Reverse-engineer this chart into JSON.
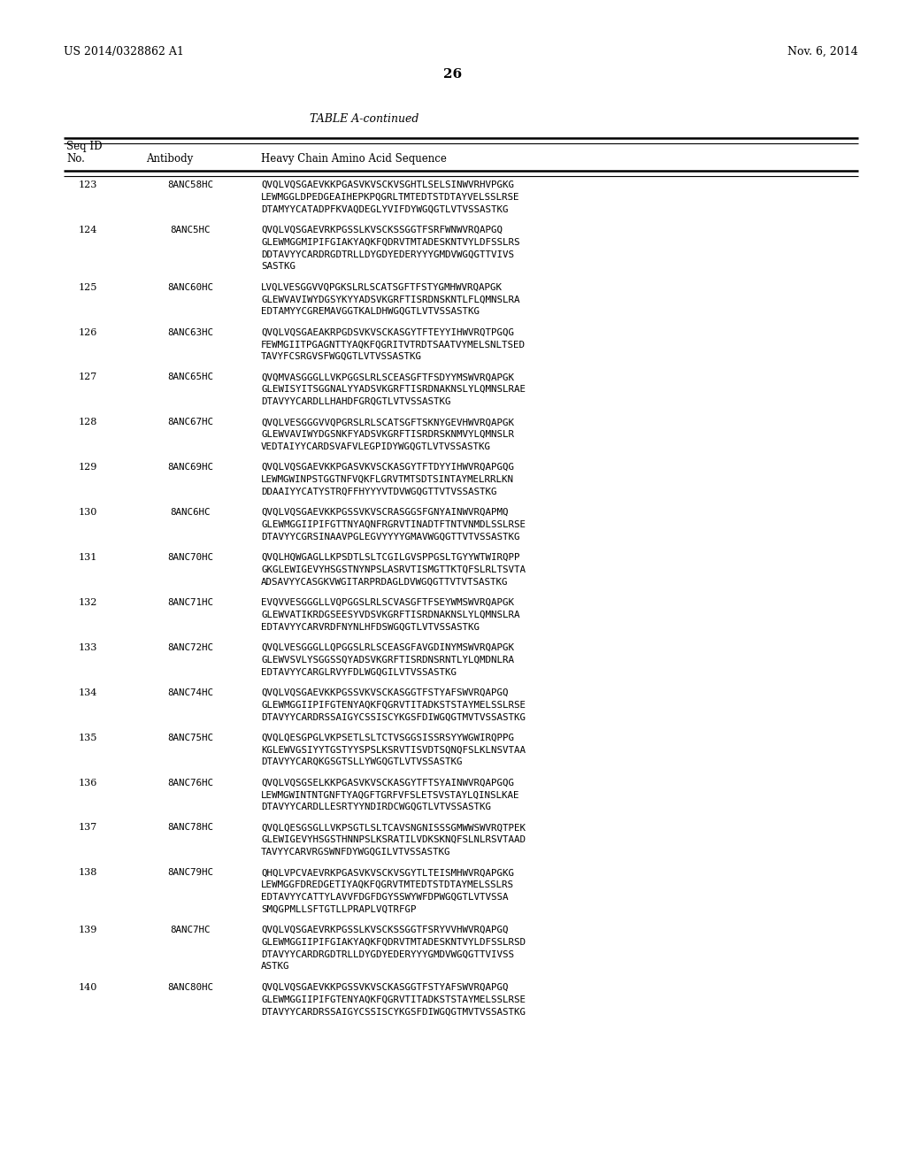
{
  "patent_left": "US 2014/0328862 A1",
  "patent_right": "Nov. 6, 2014",
  "page_number": "26",
  "table_title": "TABLE A-continued",
  "background_color": "#ffffff",
  "text_color": "#000000",
  "rows": [
    {
      "seq_id": "123",
      "antibody": "8ANC58HC",
      "sequence": "QVQLVQSGAEVKKPGASVKVSCKVSGHTLSELSINWVRHVPGKG\nLEWMGGLDPEDGEAIHEPKPQGRLTMTEDTSTDTAYVELSSLRSE\nDTAMYYCATADPFKVAQDEGLYVIFDYWGQGTLVTVSSASTKG"
    },
    {
      "seq_id": "124",
      "antibody": "8ANC5HC",
      "sequence": "QVQLVQSGAEVRKPGSSLKVSCKSSGGTFSRFWNWVRQAPGQ\nGLEWMGGMIPIFGIAKYAQKFQDRVTMTADESKNTVYLDFSSLRS\nDDTAVYYCARDRGDTRLLDYGDYEDERYYYGMDVWGQGTTVIVS\nSASTKG"
    },
    {
      "seq_id": "125",
      "antibody": "8ANC60HC",
      "sequence": "LVQLVESGGVVQPGKSLRLSCATSGFTFSTYGMHWVRQAPGK\nGLEWVAVIWYDGSYKYYADSVKGRFTISRDNSKNTLFLQMNSLRA\nEDTAMYYCGREMAVGGTKALDHWGQGTLVTVSSASTKG"
    },
    {
      "seq_id": "126",
      "antibody": "8ANC63HC",
      "sequence": "QVQLVQSGAEAKRPGDSVKVSCKASGYTFTEYYIHWVRQTPGQG\nFEWMGIITPGAGNTTYAQKFQGRITVTRDTSAATVYMELSNLTSED\nTAVYFCSRGVSFWGQGTLVTVSSASTKG"
    },
    {
      "seq_id": "127",
      "antibody": "8ANC65HC",
      "sequence": "QVQMVASGGGLLVKPGGSLRLSCEASGFTFSDYYMSWVRQAPGK\nGLEWISYITSGGNALYYADSVKGRFTISRDNAKNSLYLQMNSLRAE\nDTAVYYCARDLLHAHDFGRQGTLVTVSSASTKG"
    },
    {
      "seq_id": "128",
      "antibody": "8ANC67HC",
      "sequence": "QVQLVESGGGVVQPGRSLRLSCATSGFTSKNYGEVHWVRQAPGK\nGLEWVAVIWYDGSNKFYADSVKGRFTISRDRSKNMVYLQMNSLR\nVEDTAIYYCARDSVAFVLEGPIDYWGQGTLVTVSSASTKG"
    },
    {
      "seq_id": "129",
      "antibody": "8ANC69HC",
      "sequence": "QVQLVQSGAEVKKPGASVKVSCKASGYTFTDYYIHWVRQAPGQG\nLEWMGWINPSTGGTNFVQKFLGRVTMTSDTSINTAYMELRRLKN\nDDAAIYYCATYSTRQFFHYYYVTDVWGQGTTVTVSSASTKG"
    },
    {
      "seq_id": "130",
      "antibody": "8ANC6HC",
      "sequence": "QVQLVQSGAEVKKPGSSVKVSCRASGGSFGNYAINWVRQAPMQ\nGLEWMGGIIPIFGTTNYAQNFRGRVTINADTFTNTVNMDLSSLRSE\nDTAVYYCGRSINAAVPGLEGVYYYYGMAVWGQGTTVTVSSASTKG"
    },
    {
      "seq_id": "131",
      "antibody": "8ANC70HC",
      "sequence": "QVQLHQWGAGLLKPSDTLSLTCGILGVSPPGSLTGYYWTWIRQPP\nGKGLEWIGEVYHSGSTNYNPSLASRVTISMGTTKTQFSLRLTSVTA\nADSAVYYCASGKVWGITARPRDAGLDVWGQGTTVTVTSASTKG"
    },
    {
      "seq_id": "132",
      "antibody": "8ANC71HC",
      "sequence": "EVQVVESGGGLLVQPGGSLRLSCVASGFTFSEYWMSWVRQAPGK\nGLEWVATIKRDGSEESYVDSVKGRFTISRDNAKNSLYLQMNSLRA\nEDTAVYYCARVRDFNYNLHFDSWGQGTLVTVSSASTKG"
    },
    {
      "seq_id": "133",
      "antibody": "8ANC72HC",
      "sequence": "QVQLVESGGGLLQPGGSLRLSCEASGFAVGDINYMSWVRQAPGK\nGLEWVSVLYSGGSSQYADSVKGRFTISRDNSRNTLYLQMDNLRA\nEDTAVYYCARGLRVYFDLWGQGILVTVSSASTKG"
    },
    {
      "seq_id": "134",
      "antibody": "8ANC74HC",
      "sequence": "QVQLVQSGAEVKKPGSSVKVSCKASGGTFSTYAFSWVRQAPGQ\nGLEWMGGIIPIFGTENYAQKFQGRVTITADKSTSTAYMELSSLRSE\nDTAVYYCARDRSSAIGYCSSISCYKGSFDIWGQGTMVTVSSASTKG"
    },
    {
      "seq_id": "135",
      "antibody": "8ANC75HC",
      "sequence": "QVQLQESGPGLVKPSETLSLTCTVSGGSISSRSYYWGWIRQPPG\nKGLEWVGSIYYTGSTYYSPSLKSRVTISVDTSQNQFSLKLNSVTAA\nDTAVYYCARQKGSGTSLLYWGQGTLVTVSSASTKG"
    },
    {
      "seq_id": "136",
      "antibody": "8ANC76HC",
      "sequence": "QVQLVQSGSELKKPGASVKVSCKASGYTFTSYAINWVRQAPGQG\nLEWMGWINTNTGNFTYAQGFTGRFVFSLETSVSTAYLQINSLKAE\nDTAVYYCARDLLESRTYYNDIRDCWGQGTLVTVSSASTKG"
    },
    {
      "seq_id": "137",
      "antibody": "8ANC78HC",
      "sequence": "QVQLQESGSGLLVKPSGTLSLTCAVSNGNISSSGMWWSWVRQTPEK\nGLEWIGEVYHSGSTHNNPSLKSRATILVDKSKNQFSLNLRSVTAAD\nTAVYYCARVRGSWNFDYWGQGILVTVSSASTKG"
    },
    {
      "seq_id": "138",
      "antibody": "8ANC79HC",
      "sequence": "QHQLVPCVAEVRKPGASVKVSCKVSGYTLTEISMHWVRQAPGKG\nLEWMGGFDREDGETIYAQKFQGRVTMTEDTSTDTAYMELSSLRS\nEDTAVYYCATTYLAVVFDGFDGYSSWYWFDPWGQGTLVTVSSA\nSMQGPMLLSFTGTLLPRAPLVQTRFGP"
    },
    {
      "seq_id": "139",
      "antibody": "8ANC7HC",
      "sequence": "QVQLVQSGAEVRKPGSSLKVSCKSSGGTFSRYVVHWVRQAPGQ\nGLEWMGGIIPIFGIAKYAQKFQDRVTMTADESKNTVYLDFSSLRSD\nDTAVYYCARDRGDTRLLDYGDYEDERYYYGMDVWGQGTTVIVSS\nASTKG"
    },
    {
      "seq_id": "140",
      "antibody": "8ANC80HC",
      "sequence": "QVQLVQSGAEVKKPGSSVKVSCKASGGTFSTYAFSWVRQAPGQ\nGLEWMGGIIPIFGTENYAQKFQGRVTITADKSTSTAYMELSSLRSE\nDTAVYYCARDRSSAIGYCSSISCYKGSFDIWGQGTMVTVSSASTKG"
    }
  ]
}
